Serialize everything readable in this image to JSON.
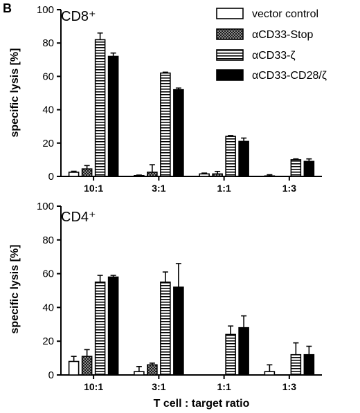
{
  "figure": {
    "panel_letter": "B",
    "xlabel": "T cell : target ratio"
  },
  "chart_data": [
    {
      "type": "bar",
      "title": "CD8⁺",
      "ylabel": "specific lysis [%]",
      "ylim": [
        0,
        100
      ],
      "yticks": [
        "0",
        "20",
        "40",
        "60",
        "80",
        "100"
      ],
      "categories": [
        "10:1",
        "3:1",
        "1:1",
        "1:3"
      ],
      "series": [
        {
          "name": "vector control",
          "pattern": "white",
          "values": [
            2.5,
            0.5,
            1.5,
            0.3
          ],
          "errors": [
            0.6,
            0.3,
            0.5,
            0.7
          ]
        },
        {
          "name": "αCD33-Stop",
          "pattern": "checker",
          "values": [
            4.5,
            2.5,
            1.5,
            0.0
          ],
          "errors": [
            2.0,
            4.5,
            1.5,
            0.0
          ]
        },
        {
          "name": "αCD33-ζ",
          "pattern": "hstripe",
          "values": [
            82,
            62,
            24,
            10
          ],
          "errors": [
            4,
            0.5,
            0.5,
            0.5
          ]
        },
        {
          "name": "αCD33-CD28/ζ",
          "pattern": "black",
          "values": [
            72,
            52,
            21,
            9
          ],
          "errors": [
            2,
            1,
            2,
            1.5
          ]
        }
      ],
      "legend": "top-right"
    },
    {
      "type": "bar",
      "title": "CD4⁺",
      "ylabel": "specific lysis [%]",
      "ylim": [
        0,
        100
      ],
      "yticks": [
        "0",
        "20",
        "40",
        "60",
        "80",
        "100"
      ],
      "categories": [
        "10:1",
        "3:1",
        "1:1",
        "1:3"
      ],
      "series": [
        {
          "name": "vector control",
          "pattern": "white",
          "values": [
            8,
            2,
            0,
            2
          ],
          "errors": [
            3,
            3,
            0,
            4
          ]
        },
        {
          "name": "αCD33-Stop",
          "pattern": "checker",
          "values": [
            11,
            6,
            0,
            0
          ],
          "errors": [
            4,
            1,
            0,
            0
          ]
        },
        {
          "name": "αCD33-ζ",
          "pattern": "hstripe",
          "values": [
            55,
            55,
            24,
            12
          ],
          "errors": [
            4,
            6,
            5,
            7
          ]
        },
        {
          "name": "αCD33-CD28/ζ",
          "pattern": "black",
          "values": [
            58,
            52,
            28,
            12
          ],
          "errors": [
            1,
            14,
            7,
            5
          ]
        }
      ]
    }
  ]
}
